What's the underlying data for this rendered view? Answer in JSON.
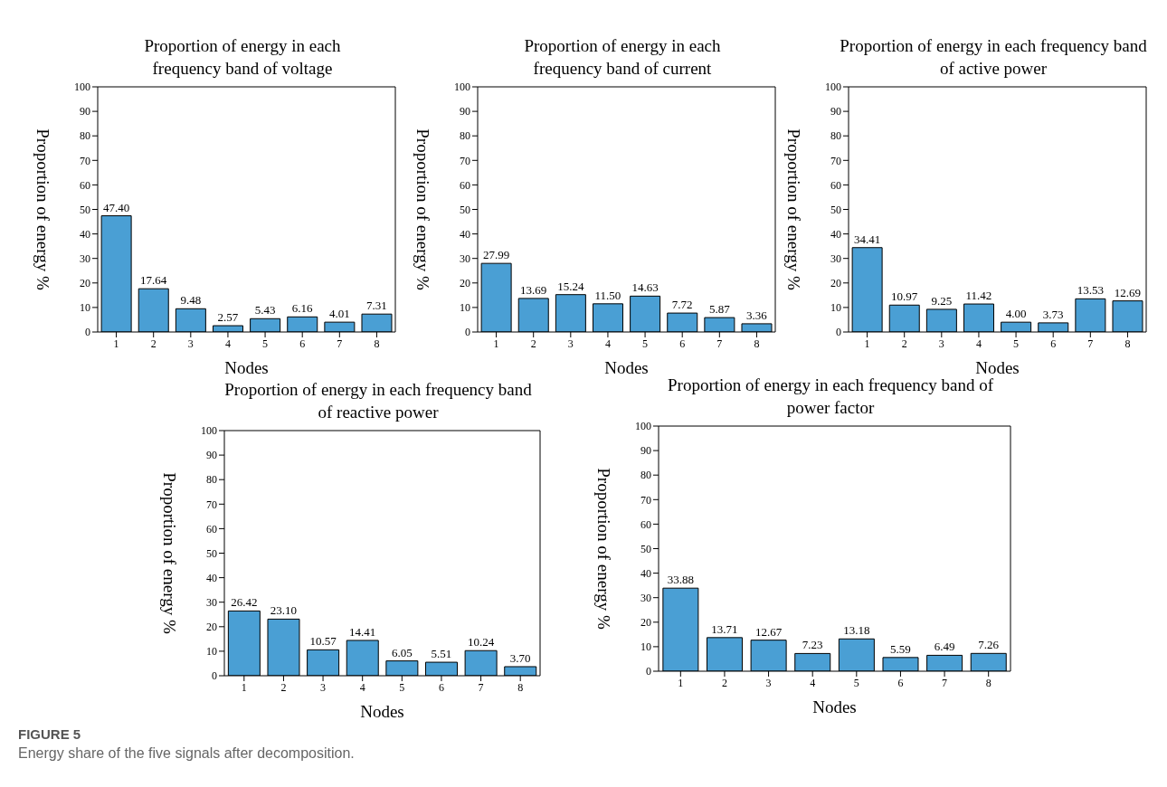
{
  "chart_data": [
    {
      "type": "bar",
      "title": "Proportion of energy in each frequency band of voltage",
      "xlabel": "Nodes",
      "ylabel": "Proportion of energy  %",
      "categories": [
        "1",
        "2",
        "3",
        "4",
        "5",
        "6",
        "7",
        "8"
      ],
      "values": [
        47.4,
        17.64,
        9.48,
        2.57,
        5.43,
        6.16,
        4.01,
        7.31
      ],
      "value_labels": [
        "47.40",
        "17.64",
        "9.48",
        "2.57",
        "5.43",
        "6.16",
        "4.01",
        "7.31"
      ],
      "color": "#4a9fd4",
      "ylim": [
        0,
        100
      ],
      "yticks": [
        0,
        10,
        20,
        30,
        40,
        50,
        60,
        70,
        80,
        90,
        100
      ],
      "grid": false
    },
    {
      "type": "bar",
      "title": "Proportion of energy in each frequency band of current",
      "xlabel": "Nodes",
      "ylabel": "Proportion of energy  %",
      "categories": [
        "1",
        "2",
        "3",
        "4",
        "5",
        "6",
        "7",
        "8"
      ],
      "values": [
        27.99,
        13.69,
        15.24,
        11.5,
        14.63,
        7.72,
        5.87,
        3.36
      ],
      "value_labels": [
        "27.99",
        "13.69",
        "15.24",
        "11.50",
        "14.63",
        "7.72",
        "5.87",
        "3.36"
      ],
      "color": "#4a9fd4",
      "ylim": [
        0,
        100
      ],
      "yticks": [
        0,
        10,
        20,
        30,
        40,
        50,
        60,
        70,
        80,
        90,
        100
      ],
      "grid": false
    },
    {
      "type": "bar",
      "title": "Proportion of energy in each frequency band of active power",
      "xlabel": "Nodes",
      "ylabel": "Proportion of energy  %",
      "categories": [
        "1",
        "2",
        "3",
        "4",
        "5",
        "6",
        "7",
        "8"
      ],
      "values": [
        34.41,
        10.97,
        9.25,
        11.42,
        4.0,
        3.73,
        13.53,
        12.69
      ],
      "value_labels": [
        "34.41",
        "10.97",
        "9.25",
        "11.42",
        "4.00",
        "3.73",
        "13.53",
        "12.69"
      ],
      "color": "#4a9fd4",
      "ylim": [
        0,
        100
      ],
      "yticks": [
        0,
        10,
        20,
        30,
        40,
        50,
        60,
        70,
        80,
        90,
        100
      ],
      "grid": false
    },
    {
      "type": "bar",
      "title": "Proportion of energy in each frequency band of reactive power",
      "xlabel": "Nodes",
      "ylabel": "Proportion of energy  %",
      "categories": [
        "1",
        "2",
        "3",
        "4",
        "5",
        "6",
        "7",
        "8"
      ],
      "values": [
        26.42,
        23.1,
        10.57,
        14.41,
        6.05,
        5.51,
        10.24,
        3.7
      ],
      "value_labels": [
        "26.42",
        "23.10",
        "10.57",
        "14.41",
        "6.05",
        "5.51",
        "10.24",
        "3.70"
      ],
      "color": "#4a9fd4",
      "ylim": [
        0,
        100
      ],
      "yticks": [
        0,
        10,
        20,
        30,
        40,
        50,
        60,
        70,
        80,
        90,
        100
      ],
      "grid": false
    },
    {
      "type": "bar",
      "title": "Proportion of energy in each frequency band of power factor",
      "xlabel": "Nodes",
      "ylabel": "Proportion of energy  %",
      "categories": [
        "1",
        "2",
        "3",
        "4",
        "5",
        "6",
        "7",
        "8"
      ],
      "values": [
        33.88,
        13.71,
        12.67,
        7.23,
        13.18,
        5.59,
        6.49,
        7.26
      ],
      "value_labels": [
        "33.88",
        "13.71",
        "12.67",
        "7.23",
        "13.18",
        "5.59",
        "6.49",
        "7.26"
      ],
      "color": "#4a9fd4",
      "ylim": [
        0,
        100
      ],
      "yticks": [
        0,
        10,
        20,
        30,
        40,
        50,
        60,
        70,
        80,
        90,
        100
      ],
      "grid": false,
      "annotations": [
        "FIGURE 5",
        "Energy share of the five signals after decomposition."
      ]
    }
  ]
}
